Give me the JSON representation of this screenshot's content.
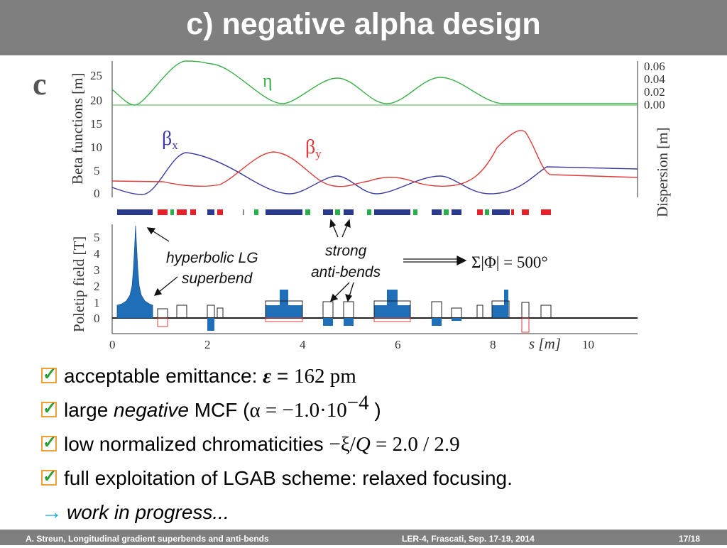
{
  "slide": {
    "title": "c) negative alpha design",
    "panel_letter": "c"
  },
  "figure": {
    "top_left_axis_label": "Beta functions [m]",
    "top_left_ticks": [
      "0",
      "5",
      "10",
      "15",
      "20",
      "25"
    ],
    "top_right_axis_label": "Dispersion [m]",
    "top_right_ticks": [
      "0.00",
      "0.02",
      "0.04",
      "0.06"
    ],
    "eta_label": "η",
    "betax_label_main": "β",
    "betax_label_sub": "x",
    "betay_label_main": "β",
    "betay_label_sub": "y",
    "bottom_axis_label": "Poletip field [T]",
    "bottom_ticks": [
      "0",
      "1",
      "2",
      "3",
      "4",
      "5"
    ],
    "x_ticks": [
      "0",
      "2",
      "4",
      "6",
      "8",
      "10"
    ],
    "x_axis_label": "s [m]",
    "annot_hyperbolic_1": "hyperbolic LG",
    "annot_hyperbolic_2": "superbend",
    "annot_strong_1": "strong",
    "annot_strong_2": "anti-bends",
    "annot_sum": "Σ|Φ| = 500°"
  },
  "bullets": {
    "b1_text": "acceptable emittance: ",
    "b1_symbol": "ε",
    "b1_eq": " = ",
    "b1_value": "162 pm",
    "b2_text_a": "large ",
    "b2_text_b": "negative",
    "b2_text_c": " MCF (",
    "b2_math": "α = −1.0·10",
    "b2_exp": "−4",
    "b2_close": " )",
    "b3_text": "low normalized chromaticities ",
    "b3_math_a": "−ξ/",
    "b3_math_q": "Q",
    "b3_math_b": " = 2.0 / 2.9",
    "b4_text": "full exploitation of LGAB scheme: relaxed focusing.",
    "b5_text": "work in progress..."
  },
  "footer": {
    "left": "A. Streun, Longitudinal gradient superbends and anti-bends",
    "center": "LER-4, Frascati,  Sep. 17-19, 2014",
    "right": "17/18"
  },
  "colors": {
    "eta": "#3cb04a",
    "betax": "#3a3aa0",
    "betay": "#e03a3a",
    "magnet_blue": "#1f6fb8",
    "lattice_dark": "#2a3a8e",
    "lattice_red": "#e8202a",
    "lattice_green": "#2ab04a"
  }
}
